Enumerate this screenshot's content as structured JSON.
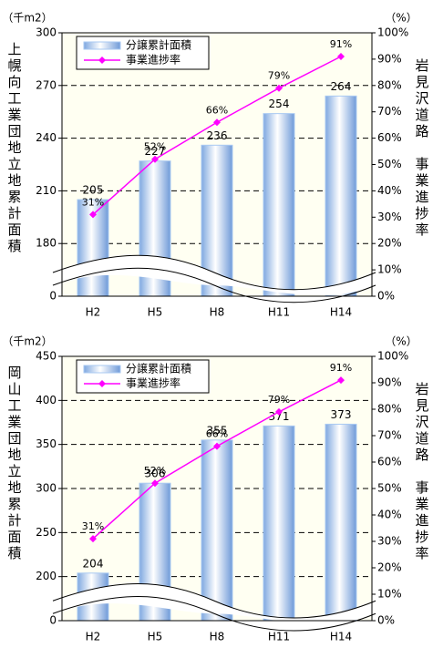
{
  "chart_data": [
    {
      "type": "bar",
      "y_unit": "（千m2）",
      "y2_unit": "（%）",
      "y_label": "上幌向工業団地立地累計面積",
      "y2_label": "岩見沢道路　事業進捗率",
      "categories": [
        "H2",
        "H5",
        "H8",
        "H11",
        "H14"
      ],
      "series": [
        {
          "name": "分譲累計面積",
          "color": "#a9c9f2",
          "values": [
            205,
            227,
            236,
            254,
            264
          ]
        },
        {
          "name": "事業進捗率",
          "color": "#ff00ff",
          "axis": "y2",
          "values": [
            31,
            52,
            66,
            79,
            91
          ],
          "value_labels": [
            "31%",
            "52%",
            "66%",
            "79%",
            "91%"
          ]
        }
      ],
      "ylim": [
        0,
        300
      ],
      "yticks": [
        0,
        180,
        210,
        240,
        270,
        300
      ],
      "axis_break": true,
      "y2lim": [
        0,
        100
      ],
      "y2ticks": [
        {
          "value": 0,
          "label": "0%"
        },
        {
          "value": 10,
          "label": "10%"
        },
        {
          "value": 20,
          "label": "20%"
        },
        {
          "value": 30,
          "label": "30%"
        },
        {
          "value": 40,
          "label": "40%"
        },
        {
          "value": 50,
          "label": "50%"
        },
        {
          "value": 60,
          "label": "60%"
        },
        {
          "value": 70,
          "label": "70%"
        },
        {
          "value": 80,
          "label": "80%"
        },
        {
          "value": 90,
          "label": "90%"
        },
        {
          "value": 100,
          "label": "100%"
        }
      ],
      "grid": true
    },
    {
      "type": "bar",
      "y_unit": "（千m2）",
      "y2_unit": "（%）",
      "y_label": "岡山工業団地立地累計面積",
      "y2_label": "岩見沢道路　事業進捗率",
      "categories": [
        "H2",
        "H5",
        "H8",
        "H11",
        "H14"
      ],
      "series": [
        {
          "name": "分譲累計面積",
          "color": "#a9c9f2",
          "values": [
            204,
            306,
            355,
            371,
            373
          ]
        },
        {
          "name": "事業進捗率",
          "color": "#ff00ff",
          "axis": "y2",
          "values": [
            31,
            52,
            66,
            79,
            91
          ],
          "value_labels": [
            "31%",
            "52%",
            "66%",
            "79%",
            "91%"
          ]
        }
      ],
      "ylim": [
        0,
        450
      ],
      "yticks": [
        0,
        200,
        250,
        300,
        350,
        400,
        450
      ],
      "axis_break": true,
      "y2lim": [
        0,
        100
      ],
      "y2ticks": [
        {
          "value": 0,
          "label": "0%"
        },
        {
          "value": 10,
          "label": "10%"
        },
        {
          "value": 20,
          "label": "20%"
        },
        {
          "value": 30,
          "label": "30%"
        },
        {
          "value": 40,
          "label": "40%"
        },
        {
          "value": 50,
          "label": "50%"
        },
        {
          "value": 60,
          "label": "60%"
        },
        {
          "value": 70,
          "label": "70%"
        },
        {
          "value": 80,
          "label": "80%"
        },
        {
          "value": 90,
          "label": "90%"
        },
        {
          "value": 100,
          "label": "100%"
        }
      ],
      "grid": true
    }
  ]
}
